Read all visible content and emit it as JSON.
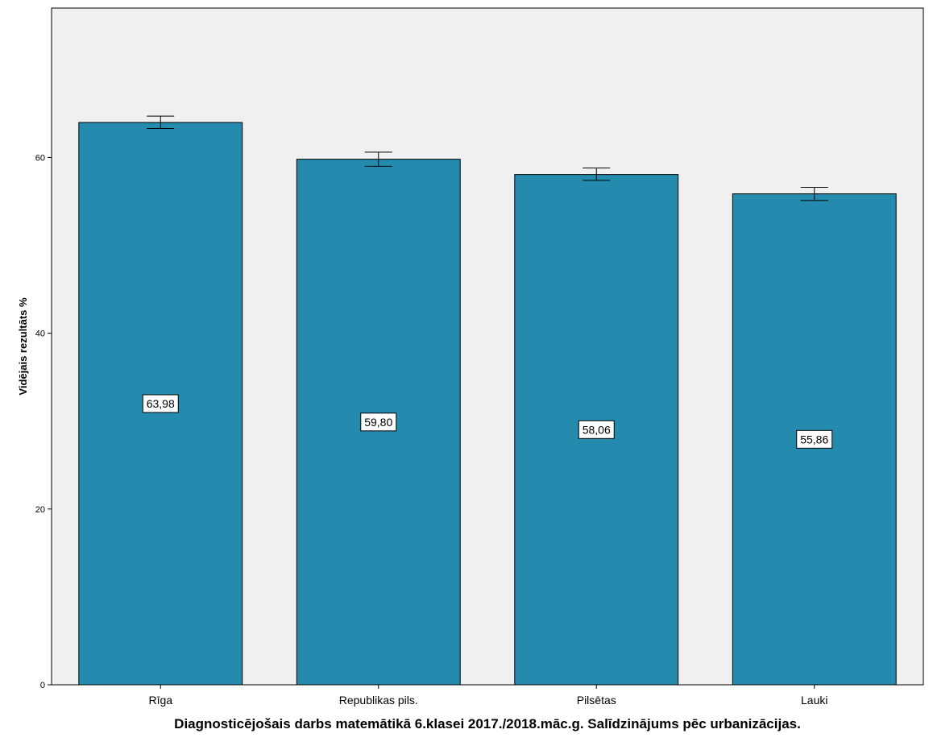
{
  "chart_data": {
    "type": "bar",
    "title": "",
    "xlabel": "Diagnosticējošais darbs matemātikā 6.klasei 2017./2018.māc.g. Salīdzinājums pēc urbanizācijas.",
    "ylabel": "Vidējais rezultāts %",
    "categories": [
      "Rīga",
      "Republikas pils.",
      "Pilsētas",
      "Lauki"
    ],
    "values": [
      63.98,
      59.8,
      58.06,
      55.86
    ],
    "value_labels": [
      "63,98",
      "59,80",
      "58,06",
      "55,86"
    ],
    "error_low": [
      63.3,
      59.0,
      57.4,
      55.1
    ],
    "error_high": [
      64.7,
      60.6,
      58.8,
      56.6
    ],
    "ylim": [
      0,
      77
    ],
    "yticks": [
      0,
      20,
      40,
      60
    ],
    "ytick_labels": [
      "0",
      "20",
      "40",
      "60"
    ],
    "bar_color": "#258BAE",
    "plot_background": "#F0F0F0",
    "grid": false,
    "legend": "none"
  }
}
